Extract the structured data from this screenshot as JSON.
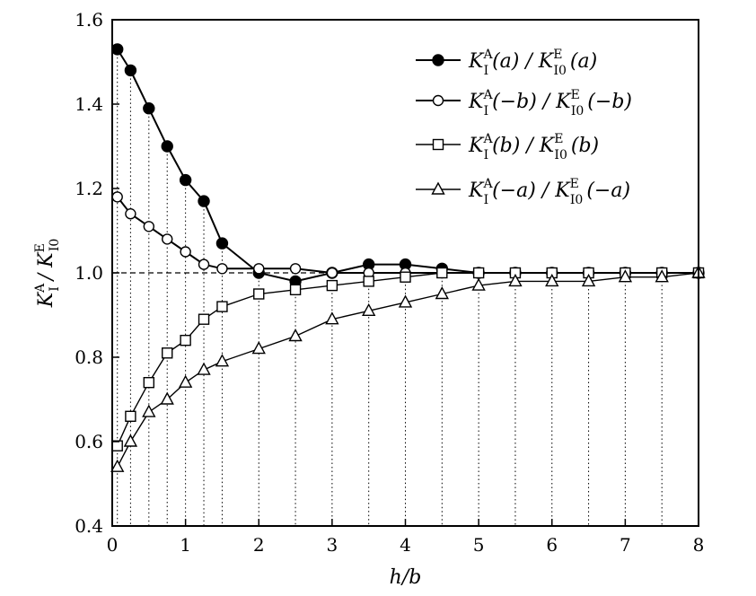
{
  "chart_data": {
    "type": "line",
    "xlabel": "h/b",
    "ylabel": {
      "base": "K",
      "sup": "A",
      "sub": "I",
      "sep": " / ",
      "base2": "K",
      "sup2": "E",
      "sub2": "I0"
    },
    "xlim": [
      0,
      8
    ],
    "ylim": [
      0.4,
      1.6
    ],
    "xticks": [
      0,
      1,
      2,
      3,
      4,
      5,
      6,
      7,
      8
    ],
    "yticks": [
      0.4,
      0.6,
      0.8,
      1.0,
      1.2,
      1.4,
      1.6
    ],
    "xtick_labels": [
      "0",
      "1",
      "2",
      "3",
      "4",
      "5",
      "6",
      "7",
      "8"
    ],
    "ytick_labels": [
      "0.4",
      "0.6",
      "0.8",
      "1.0",
      "1.2",
      "1.4",
      "1.6"
    ],
    "reference_line": {
      "y": 1.0,
      "style": "dashed"
    },
    "vertical_dotted_lines_at_data_x": true,
    "legend_position": "top-right",
    "series": [
      {
        "name": "K_I^A(a)/K_I0^E(a)",
        "label": {
          "arg": "(a)",
          "arg2": "(a)"
        },
        "marker": "filled-circle",
        "x": [
          0.07,
          0.25,
          0.5,
          0.75,
          1.0,
          1.25,
          1.5,
          2.0,
          2.5,
          3.0,
          3.5,
          4.0,
          4.5,
          5.0,
          5.5,
          6.0,
          6.5,
          7.0,
          7.5,
          8.0
        ],
        "y": [
          1.53,
          1.48,
          1.39,
          1.3,
          1.22,
          1.17,
          1.07,
          1.0,
          0.98,
          1.0,
          1.02,
          1.02,
          1.01,
          1.0,
          1.0,
          1.0,
          1.0,
          1.0,
          1.0,
          1.0
        ]
      },
      {
        "name": "K_I^A(-b)/K_I0^E(-b)",
        "label": {
          "arg": "(−b)",
          "arg2": "(−b)"
        },
        "marker": "open-circle",
        "x": [
          0.07,
          0.25,
          0.5,
          0.75,
          1.0,
          1.25,
          1.5,
          2.0,
          2.5,
          3.0,
          3.5,
          4.0,
          4.5,
          5.0,
          5.5,
          6.0,
          6.5,
          7.0,
          7.5,
          8.0
        ],
        "y": [
          1.18,
          1.14,
          1.11,
          1.08,
          1.05,
          1.02,
          1.01,
          1.01,
          1.01,
          1.0,
          1.0,
          1.0,
          1.0,
          1.0,
          1.0,
          1.0,
          1.0,
          1.0,
          1.0,
          1.0
        ]
      },
      {
        "name": "K_I^A(b)/K_I0^E(b)",
        "label": {
          "arg": "(b)",
          "arg2": "(b)"
        },
        "marker": "open-square",
        "x": [
          0.07,
          0.25,
          0.5,
          0.75,
          1.0,
          1.25,
          1.5,
          2.0,
          2.5,
          3.0,
          3.5,
          4.0,
          4.5,
          5.0,
          5.5,
          6.0,
          6.5,
          7.0,
          7.5,
          8.0
        ],
        "y": [
          0.59,
          0.66,
          0.74,
          0.81,
          0.84,
          0.89,
          0.92,
          0.95,
          0.96,
          0.97,
          0.98,
          0.99,
          1.0,
          1.0,
          1.0,
          1.0,
          1.0,
          1.0,
          1.0,
          1.0
        ]
      },
      {
        "name": "K_I^A(-a)/K_I0^E(-a)",
        "label": {
          "arg": "(−a)",
          "arg2": "(−a)"
        },
        "marker": "open-triangle",
        "x": [
          0.07,
          0.25,
          0.5,
          0.75,
          1.0,
          1.25,
          1.5,
          2.0,
          2.5,
          3.0,
          3.5,
          4.0,
          4.5,
          5.0,
          5.5,
          6.0,
          6.5,
          7.0,
          7.5,
          8.0
        ],
        "y": [
          0.54,
          0.6,
          0.67,
          0.7,
          0.74,
          0.77,
          0.79,
          0.82,
          0.85,
          0.89,
          0.91,
          0.93,
          0.95,
          0.97,
          0.98,
          0.98,
          0.98,
          0.99,
          0.99,
          1.0
        ]
      }
    ]
  }
}
